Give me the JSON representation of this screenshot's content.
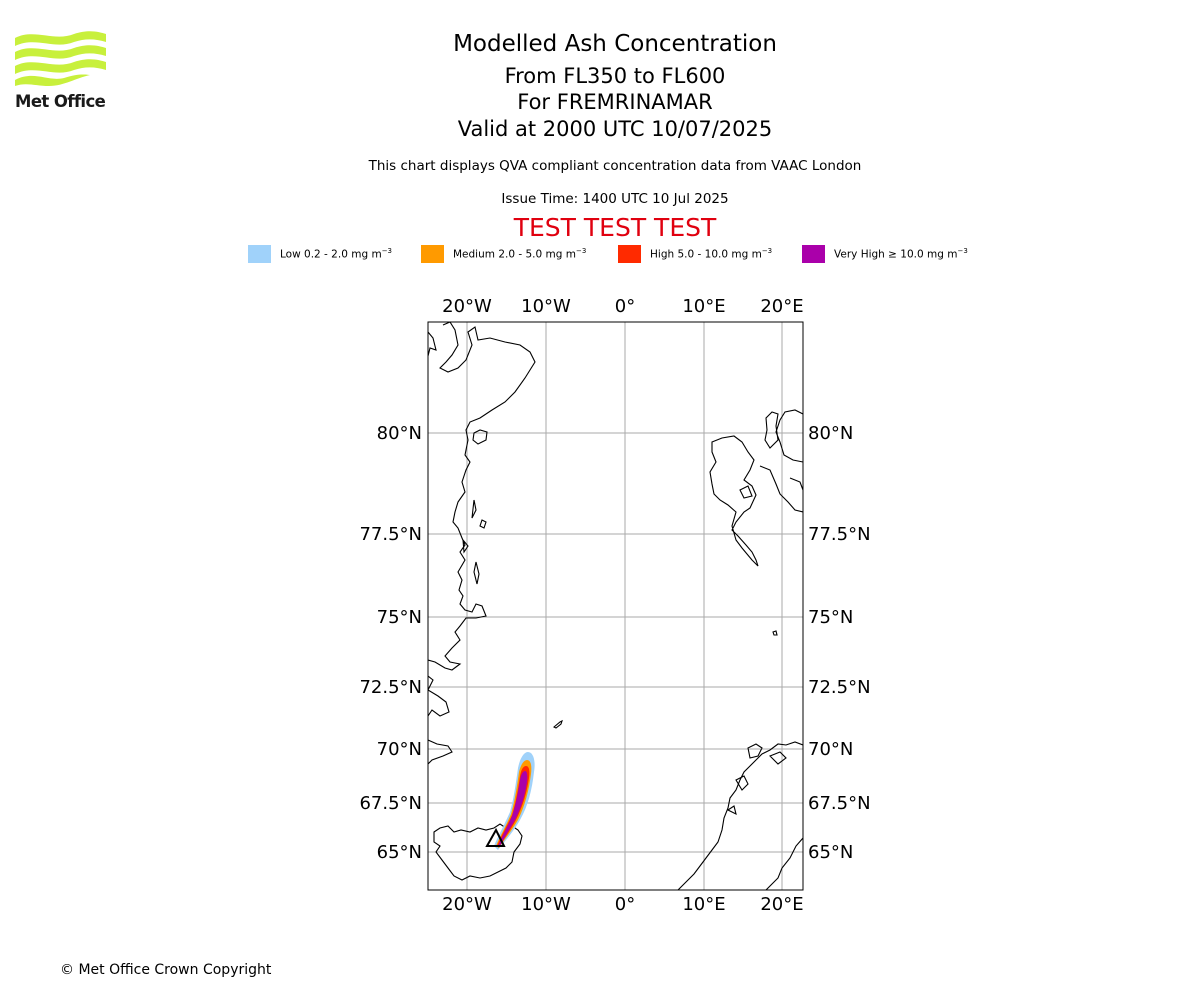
{
  "branding": {
    "logo_text": "Met Office",
    "logo_color": "#c8f03c"
  },
  "header": {
    "title": "Modelled Ash Concentration",
    "levels": "From FL350 to FL600",
    "volcano": "For FREMRINAMAR",
    "valid": "Valid at 2000 UTC 10/07/2025",
    "subtitle": "This chart displays QVA compliant concentration data from VAAC London",
    "issue_time": "Issue Time: 1400 UTC 10 Jul 2025",
    "test_banner": "TEST TEST TEST"
  },
  "legend": [
    {
      "label": "Low 0.2 - 2.0 mg m",
      "unit_exp": "−3",
      "color": "#a0d2fa"
    },
    {
      "label": "Medium 2.0 - 5.0 mg m",
      "unit_exp": "−3",
      "color": "#ff9a00"
    },
    {
      "label": "High 5.0 - 10.0 mg m",
      "unit_exp": "−3",
      "color": "#ff2a00"
    },
    {
      "label": "Very High  ≥  10.0 mg m",
      "unit_exp": "−3",
      "color": "#aa00aa"
    }
  ],
  "map": {
    "lon_labels": [
      "20°W",
      "10°W",
      "0°",
      "10°E",
      "20°E"
    ],
    "lat_labels": [
      "80°N",
      "77.5°N",
      "75°N",
      "72.5°N",
      "70°N",
      "67.5°N",
      "65°N"
    ],
    "gridline_color": "#aaaaaa",
    "volcano_marker": "triangle"
  },
  "footer": {
    "copyright": "© Met Office Crown Copyright"
  }
}
